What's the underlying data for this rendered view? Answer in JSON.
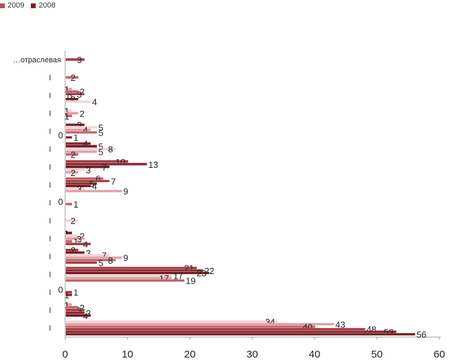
{
  "legend": [
    {
      "label": "2009",
      "color": "#b5525a"
    },
    {
      "label": "2008",
      "color": "#7f1d24"
    }
  ],
  "chart_data": {
    "type": "bar",
    "orientation": "horizontal",
    "x_ticks": [
      "0",
      "10",
      "20",
      "30",
      "40",
      "50",
      "60"
    ],
    "xlim": [
      0,
      60
    ],
    "grid": false,
    "legend_position": "top-left",
    "groups": [
      {
        "label": "",
        "values": [
          34,
          43,
          40,
          48,
          53,
          56
        ]
      },
      {
        "label": "",
        "values": [
          1,
          2,
          3,
          3,
          4
        ]
      },
      {
        "label": "",
        "values": [
          0,
          1,
          1
        ]
      },
      {
        "label": "",
        "values": [
          21,
          22,
          23,
          17,
          17,
          19
        ]
      },
      {
        "label": "",
        "values": [
          2,
          3,
          7,
          9,
          8,
          5
        ]
      },
      {
        "label": "",
        "values": [
          1,
          2,
          3,
          1,
          4
        ]
      },
      {
        "label": "",
        "values": [
          2
        ]
      },
      {
        "label": "",
        "values": [
          0,
          1
        ]
      },
      {
        "label": "",
        "values": [
          6,
          7,
          5,
          4,
          3,
          9
        ]
      },
      {
        "label": "",
        "values": [
          10,
          13,
          7,
          3,
          2
        ]
      },
      {
        "label": "",
        "values": [
          4,
          5,
          8,
          5,
          2
        ]
      },
      {
        "label": "",
        "values": [
          3,
          5,
          4,
          5,
          0,
          1
        ]
      },
      {
        "label": "",
        "values": [
          1,
          2,
          1
        ]
      },
      {
        "label": "",
        "values": [
          1,
          2,
          3,
          0,
          2,
          4
        ]
      },
      {
        "label": "",
        "values": [
          2
        ]
      },
      {
        "label": "…отраслевая",
        "values": [
          3
        ]
      }
    ]
  }
}
